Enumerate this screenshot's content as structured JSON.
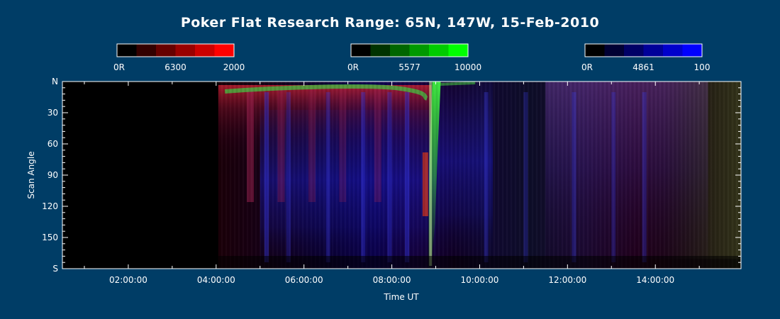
{
  "colors": {
    "background": "#003d66",
    "foreground": "#ffffff"
  },
  "chart_data": {
    "type": "heatmap",
    "title": "Poker Flat Research Range: 65N, 147W, 15-Feb-2010",
    "xlabel": "Time UT",
    "ylabel": "Scan Angle",
    "x_tick_labels": [
      "02:00:00",
      "04:00:00",
      "06:00:00",
      "08:00:00",
      "10:00:00",
      "12:00:00",
      "14:00:00"
    ],
    "x_tick_hours": [
      2,
      4,
      6,
      8,
      10,
      12,
      14
    ],
    "xlim_hours": [
      0.5,
      15.95
    ],
    "y_tick_labels": [
      "N",
      "30",
      "60",
      "90",
      "120",
      "150",
      "S"
    ],
    "y_tick_values": [
      0,
      30,
      60,
      90,
      120,
      150,
      180
    ],
    "ylim": [
      0,
      180
    ],
    "data_start_hour": 4.05,
    "colorbars": [
      {
        "name": "6300",
        "min_label": "0R",
        "max_label": "2000",
        "colors": [
          "#000000",
          "#330000",
          "#660000",
          "#990000",
          "#cc0000",
          "#ff0000"
        ]
      },
      {
        "name": "5577",
        "min_label": "0R",
        "max_label": "10000",
        "colors": [
          "#000000",
          "#003300",
          "#006600",
          "#009900",
          "#00cc00",
          "#00ff00"
        ]
      },
      {
        "name": "4861",
        "min_label": "0R",
        "max_label": "100",
        "colors": [
          "#000000",
          "#000033",
          "#000066",
          "#000099",
          "#0000cc",
          "#0000ff"
        ]
      }
    ]
  }
}
